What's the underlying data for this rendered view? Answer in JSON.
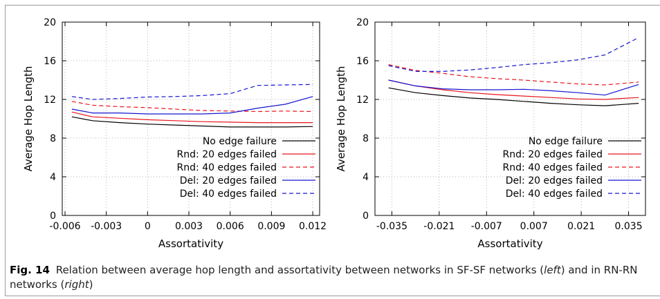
{
  "caption": {
    "label": "Fig. 14",
    "text_a": "Relation between average hop length and assortativity between networks in SF-SF networks (",
    "italic_left": "left",
    "text_b": ") and in RN-RN networks (",
    "italic_right": "right",
    "text_c": ")"
  },
  "chart_data": [
    {
      "type": "line",
      "title": "",
      "xlabel": "Assortativity",
      "ylabel": "Average Hop Length",
      "xlim": [
        -0.0062,
        0.0125
      ],
      "ylim": [
        0,
        20
      ],
      "xticks": [
        -0.006,
        -0.003,
        0,
        0.003,
        0.006,
        0.009,
        0.012
      ],
      "xtick_labels": [
        "-0.006",
        "-0.003",
        "0",
        "0.003",
        "0.006",
        "0.009",
        "0.012"
      ],
      "yticks": [
        0,
        4,
        8,
        12,
        16,
        20
      ],
      "grid": true,
      "legend": "bottom-right",
      "x": [
        -0.0055,
        -0.004,
        -0.002,
        0,
        0.002,
        0.004,
        0.006,
        0.008,
        0.01,
        0.012
      ],
      "series": [
        {
          "name": "No edge failure",
          "color": "#000000",
          "dash": false,
          "values": [
            10.2,
            9.8,
            9.6,
            9.45,
            9.35,
            9.25,
            9.15,
            9.15,
            9.15,
            9.2
          ]
        },
        {
          "name": "Rnd: 20 edges failed",
          "color": "#e8141c",
          "dash": false,
          "values": [
            10.7,
            10.2,
            10.05,
            9.9,
            9.8,
            9.7,
            9.65,
            9.6,
            9.6,
            9.6
          ]
        },
        {
          "name": "Rnd: 40 edges failed",
          "color": "#e8141c",
          "dash": true,
          "values": [
            11.8,
            11.4,
            11.25,
            11.15,
            11.0,
            10.85,
            10.8,
            10.75,
            10.8,
            10.75
          ]
        },
        {
          "name": "Del: 20 edges failed",
          "color": "#1414d2",
          "dash": false,
          "values": [
            11.0,
            10.6,
            10.6,
            10.5,
            10.5,
            10.5,
            10.6,
            11.1,
            11.5,
            12.3
          ]
        },
        {
          "name": "Del: 40 edges failed",
          "color": "#1414d2",
          "dash": true,
          "values": [
            12.3,
            12.0,
            12.1,
            12.25,
            12.3,
            12.4,
            12.6,
            13.45,
            13.5,
            13.55
          ]
        }
      ]
    },
    {
      "type": "line",
      "title": "",
      "xlabel": "Assortativity",
      "ylabel": "Average Hop Length",
      "xlim": [
        -0.04,
        0.04
      ],
      "ylim": [
        0,
        20
      ],
      "xticks": [
        -0.035,
        -0.021,
        -0.007,
        0.007,
        0.021,
        0.035
      ],
      "xtick_labels": [
        "-0.035",
        "-0.021",
        "-0.007",
        "0.007",
        "0.021",
        "0.035"
      ],
      "yticks": [
        0,
        4,
        8,
        12,
        16,
        20
      ],
      "grid": true,
      "legend": "bottom-right",
      "x": [
        -0.036,
        -0.028,
        -0.02,
        -0.012,
        -0.004,
        0.004,
        0.012,
        0.02,
        0.028,
        0.038
      ],
      "series": [
        {
          "name": "No edge failure",
          "color": "#000000",
          "dash": false,
          "values": [
            13.2,
            12.7,
            12.4,
            12.15,
            12.0,
            11.8,
            11.6,
            11.45,
            11.35,
            11.6
          ]
        },
        {
          "name": "Rnd: 20 edges failed",
          "color": "#e8141c",
          "dash": false,
          "values": [
            14.0,
            13.4,
            13.0,
            12.7,
            12.5,
            12.35,
            12.2,
            12.05,
            12.0,
            12.2
          ]
        },
        {
          "name": "Rnd: 40 edges failed",
          "color": "#e8141c",
          "dash": true,
          "values": [
            15.6,
            15.0,
            14.7,
            14.35,
            14.15,
            14.0,
            13.8,
            13.6,
            13.5,
            13.8
          ]
        },
        {
          "name": "Del: 20 edges failed",
          "color": "#1414d2",
          "dash": false,
          "values": [
            14.0,
            13.4,
            13.1,
            13.0,
            13.0,
            13.05,
            12.9,
            12.7,
            12.45,
            13.55
          ]
        },
        {
          "name": "Del: 40 edges failed",
          "color": "#1414d2",
          "dash": true,
          "values": [
            15.5,
            14.9,
            14.9,
            15.05,
            15.3,
            15.6,
            15.8,
            16.1,
            16.6,
            18.4
          ]
        }
      ]
    }
  ]
}
